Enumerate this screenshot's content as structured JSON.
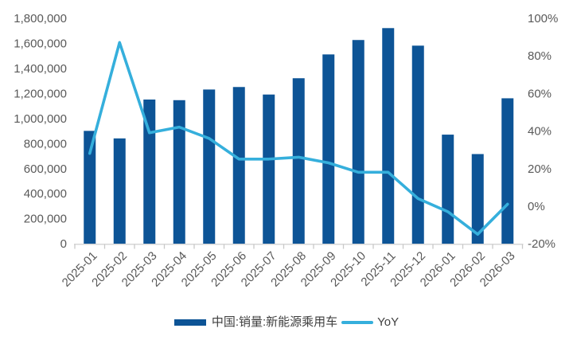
{
  "colors": {
    "bar": "#0D5496",
    "line": "#35AFDC",
    "axis_text": "#595959",
    "legend_text": "#3f3f3f",
    "axis_line": "#D6D6D6",
    "tick_mark": "#C9C9C9"
  },
  "legend": {
    "bar_label": "中国:销量:新能源乘用车",
    "line_label": "YoY"
  },
  "chart_data": {
    "type": "combo",
    "title": "",
    "grid": false,
    "legend_position": "bottom",
    "categories": [
      "2025-01",
      "2025-02",
      "2025-03",
      "2025-04",
      "2025-05",
      "2025-06",
      "2025-07",
      "2025-08",
      "2025-09",
      "2025-10",
      "2025-11",
      "2025-12",
      "2026-01",
      "2026-02",
      "2026-03"
    ],
    "series": [
      {
        "name": "中国:销量:新能源乘用车",
        "type": "bar",
        "axis": "left",
        "color": "#0D5496",
        "values": [
          900000,
          840000,
          1150000,
          1145000,
          1230000,
          1250000,
          1190000,
          1320000,
          1510000,
          1625000,
          1720000,
          1580000,
          870000,
          715000,
          1160000
        ]
      },
      {
        "name": "YoY",
        "type": "line",
        "axis": "right",
        "color": "#35AFDC",
        "values": [
          28,
          87,
          39,
          42,
          36,
          25,
          25,
          26,
          23,
          18,
          18,
          4,
          -3,
          -15,
          1
        ]
      }
    ],
    "left_axis": {
      "min": 0,
      "max": 1800000,
      "step": 200000,
      "ticks": [
        "1,800,000",
        "1,600,000",
        "1,400,000",
        "1,200,000",
        "1,000,000",
        "800,000",
        "600,000",
        "400,000",
        "200,000",
        "0"
      ]
    },
    "right_axis": {
      "min": -20,
      "max": 100,
      "step": 20,
      "ticks": [
        "100%",
        "80%",
        "60%",
        "40%",
        "20%",
        "0%",
        "-20%"
      ]
    }
  }
}
